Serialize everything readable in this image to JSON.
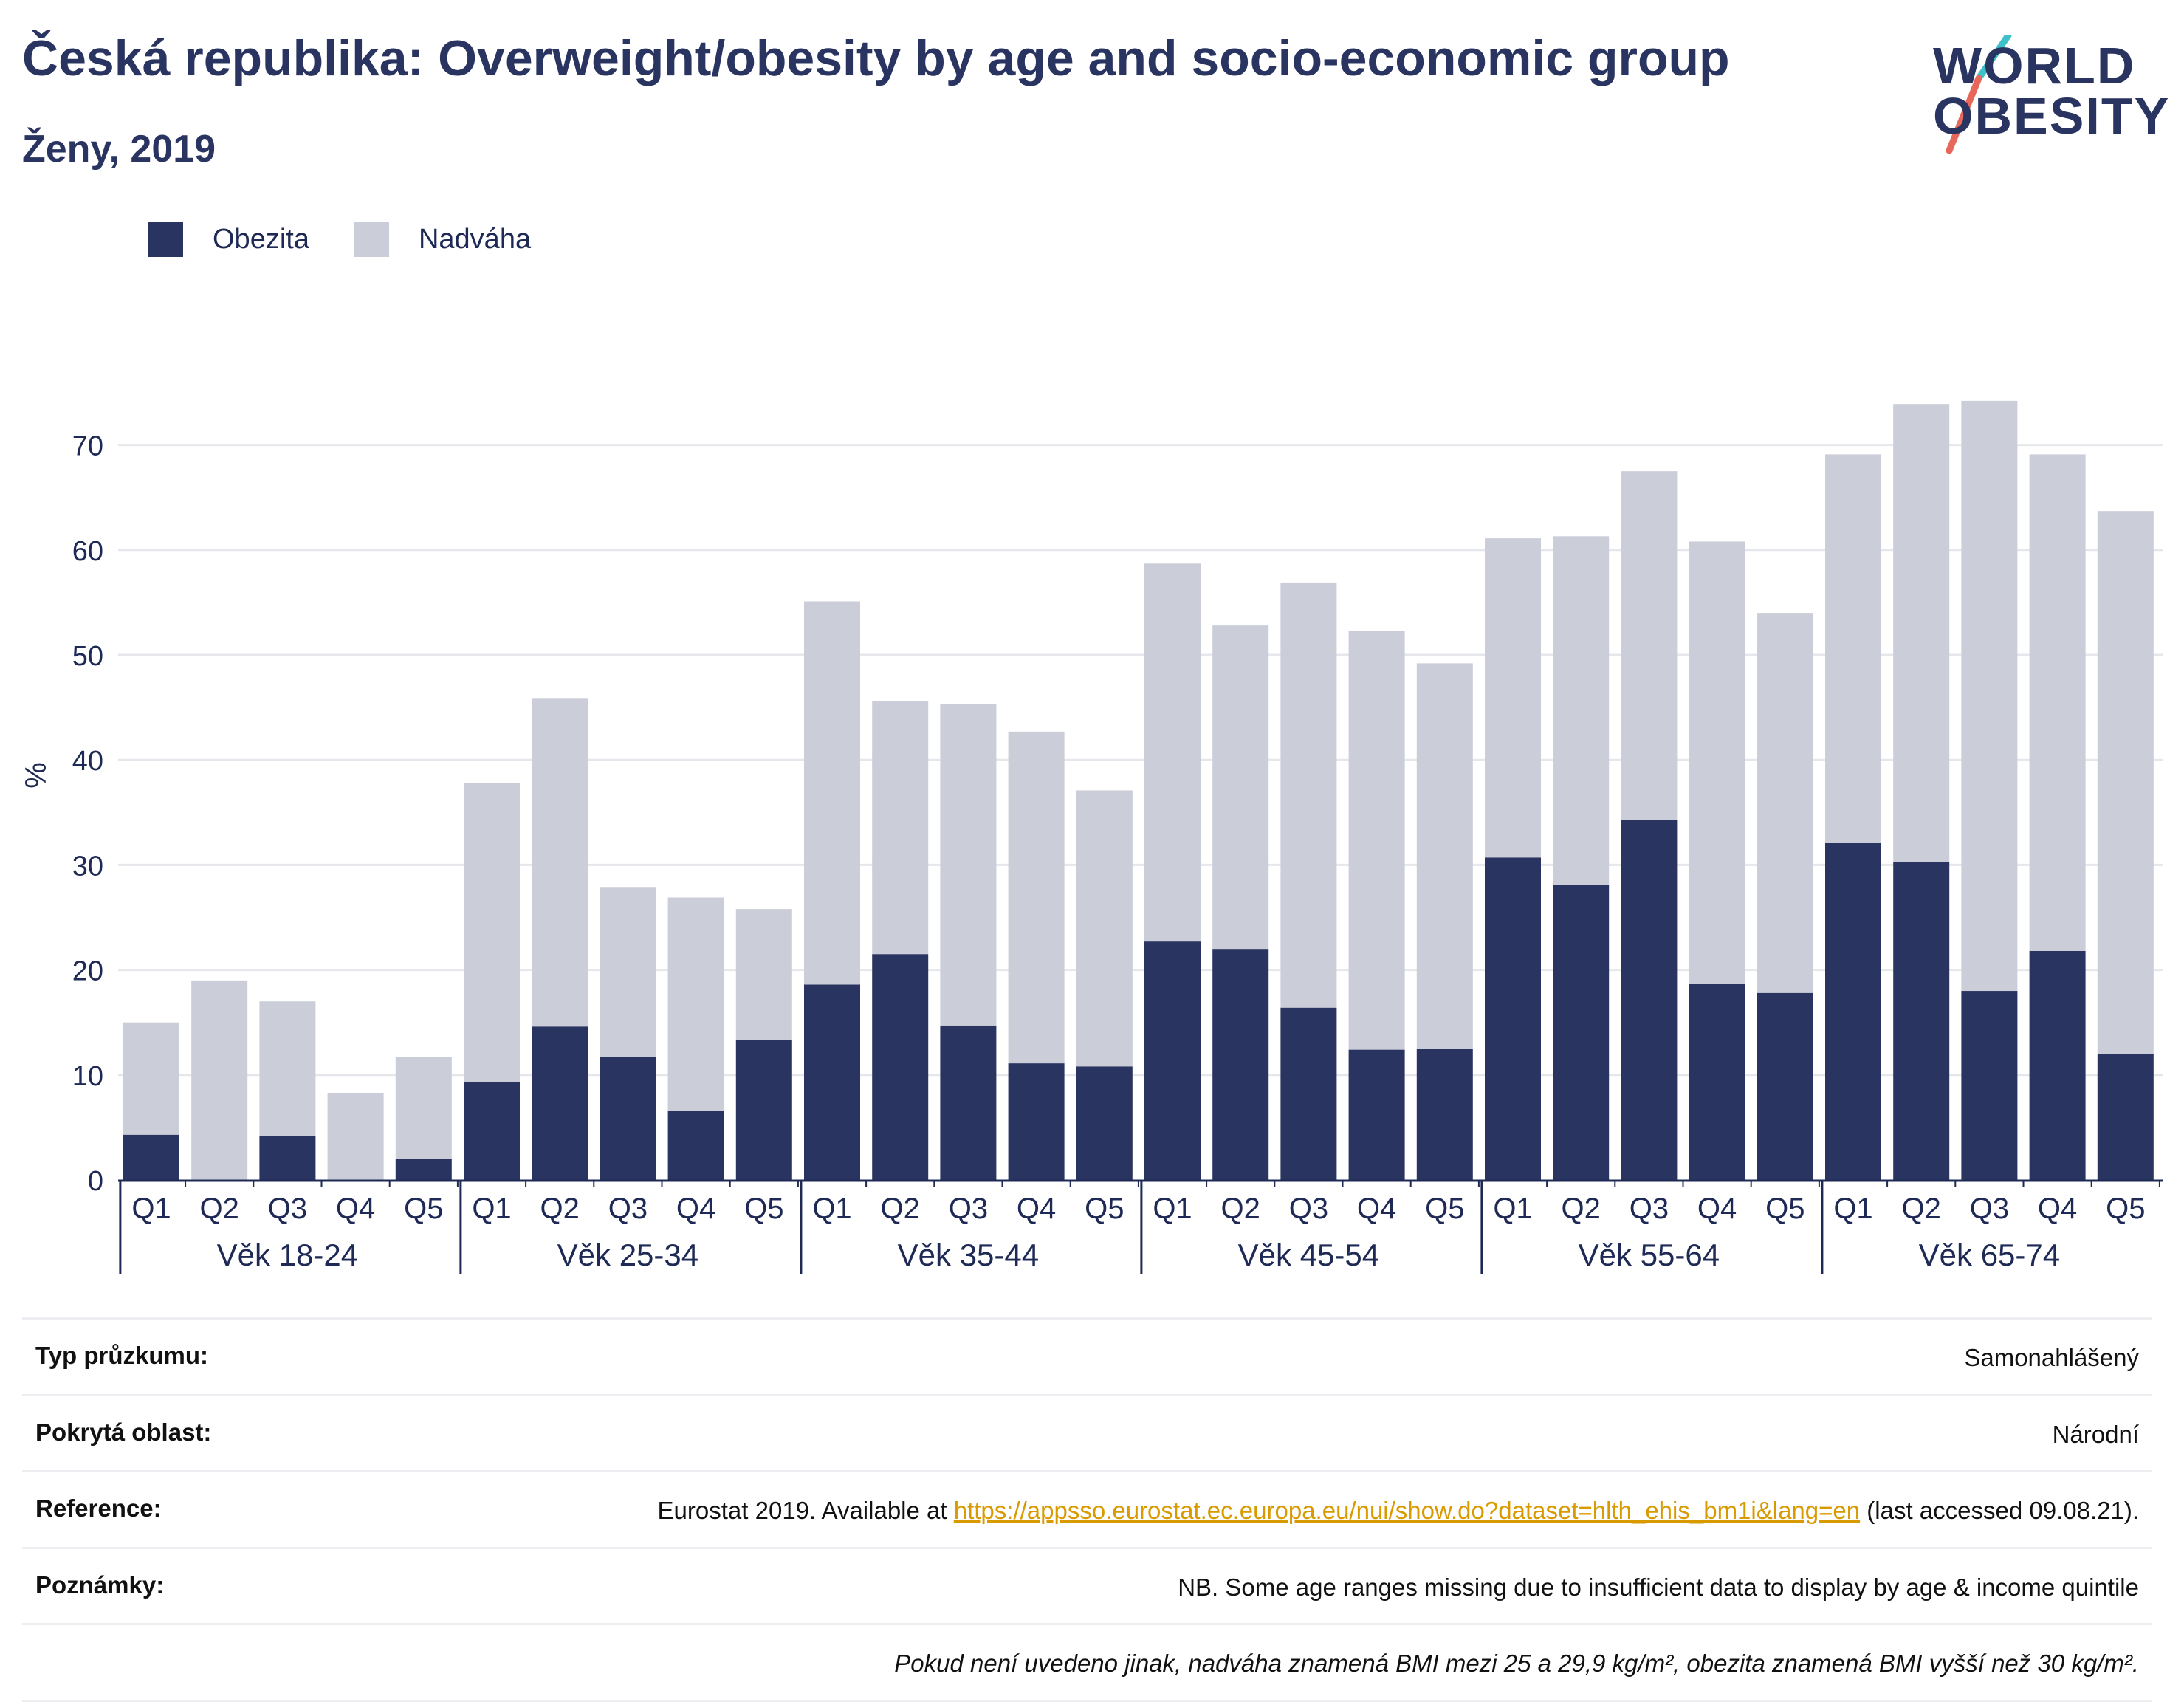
{
  "header": {
    "title": "Česká republika: Overweight/obesity by age and socio-economic group",
    "subtitle": "Ženy, 2019"
  },
  "logo": {
    "line1": "WORLD",
    "line2": "OBESITY",
    "slash_color_top": "#3fc1c9",
    "slash_color_bottom": "#e8675b"
  },
  "legend": [
    {
      "label": "Obezita",
      "color": "#2a3461"
    },
    {
      "label": "Nadváha",
      "color": "#cbcdd8"
    }
  ],
  "colors": {
    "obesity": "#2a3461",
    "overweight": "#cbcdd8",
    "grid": "#e6e7ec",
    "axis": "#1e2a55"
  },
  "chart_data": {
    "type": "bar",
    "stacked": true,
    "ylabel": "%",
    "ylim": [
      0,
      75
    ],
    "yticks": [
      0,
      10,
      20,
      30,
      40,
      50,
      60,
      70
    ],
    "grid": true,
    "legend_position": "top-left",
    "groups": [
      "Věk 18-24",
      "Věk 25-34",
      "Věk 35-44",
      "Věk 45-54",
      "Věk 55-64",
      "Věk 65-74"
    ],
    "quintiles": [
      "Q1",
      "Q2",
      "Q3",
      "Q4",
      "Q5"
    ],
    "series": [
      {
        "name": "Obezita",
        "values": [
          4.3,
          0,
          4.2,
          0,
          2.0,
          9.3,
          14.6,
          11.7,
          6.6,
          13.3,
          18.6,
          21.5,
          14.7,
          11.1,
          10.8,
          22.7,
          22.0,
          16.4,
          12.4,
          12.5,
          30.7,
          28.1,
          34.3,
          18.7,
          17.8,
          32.1,
          30.3,
          18.0,
          21.8,
          12.0
        ]
      },
      {
        "name": "Nadváha",
        "values": [
          10.7,
          19.0,
          12.8,
          8.3,
          9.7,
          28.5,
          31.3,
          16.2,
          20.3,
          12.5,
          36.5,
          24.1,
          30.6,
          31.6,
          26.3,
          36.0,
          30.8,
          40.5,
          39.9,
          36.7,
          30.4,
          33.2,
          33.2,
          42.1,
          36.2,
          37.0,
          43.6,
          56.2,
          47.3,
          51.7
        ]
      }
    ]
  },
  "footer": {
    "survey_type": {
      "label": "Typ průzkumu:",
      "value": "Samonahlášený"
    },
    "coverage": {
      "label": "Pokrytá oblast:",
      "value": "Národní"
    },
    "reference": {
      "label": "Reference:",
      "prefix": "Eurostat 2019. Available at ",
      "link": "https://appsso.eurostat.ec.europa.eu/nui/show.do?dataset=hlth_ehis_bm1i&lang=en",
      "suffix": " (last accessed 09.08.21)."
    },
    "notes": {
      "label": "Poznámky:",
      "value": "NB. Some age ranges missing due to insufficient data to display by age & income quintile"
    },
    "definition": "Pokud není uvedeno jinak, nadváha znamená BMI mezi 25 a 29,9 kg/m², obezita znamená BMI vyšší než 30 kg/m²."
  }
}
